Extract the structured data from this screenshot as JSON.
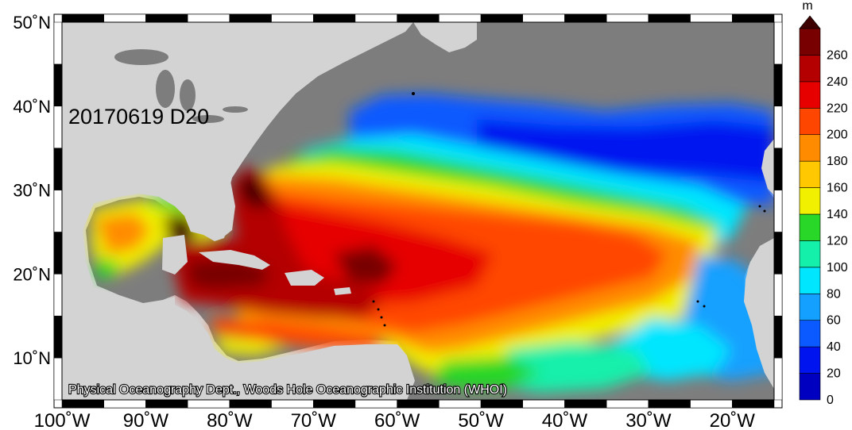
{
  "map": {
    "date_label": "20170619 D20",
    "credit": "Physical Oceanography Dept., Woods Hole Oceanographic Institution (WHOI)",
    "land_color": "#d3d3d3",
    "nodata_color": "#7d7d7d",
    "lat_ticks": [
      {
        "value": 50,
        "label": "50˚N"
      },
      {
        "value": 40,
        "label": "40˚N"
      },
      {
        "value": 30,
        "label": "30˚N"
      },
      {
        "value": 20,
        "label": "20˚N"
      },
      {
        "value": 10,
        "label": "10˚N"
      }
    ],
    "lon_ticks": [
      {
        "value": -100,
        "label": "100˚W"
      },
      {
        "value": -90,
        "label": "90˚W"
      },
      {
        "value": -80,
        "label": "80˚W"
      },
      {
        "value": -70,
        "label": "70˚W"
      },
      {
        "value": -60,
        "label": "60˚W"
      },
      {
        "value": -50,
        "label": "50˚W"
      },
      {
        "value": -40,
        "label": "40˚W"
      },
      {
        "value": -30,
        "label": "30˚W"
      },
      {
        "value": -20,
        "label": "20˚W"
      }
    ],
    "extent": {
      "lon": [
        -100,
        -15
      ],
      "lat": [
        5,
        50
      ]
    }
  },
  "colorbar": {
    "unit": "m",
    "ticks": [
      "0",
      "20",
      "40",
      "60",
      "80",
      "100",
      "120",
      "140",
      "160",
      "180",
      "200",
      "220",
      "240",
      "260"
    ],
    "colors": [
      "#0000c0",
      "#0014f0",
      "#0a5aff",
      "#14a0ff",
      "#00e6ff",
      "#14f0aa",
      "#28d728",
      "#f0f000",
      "#ffc800",
      "#ff8c00",
      "#ff4600",
      "#e60000",
      "#b40000",
      "#780000"
    ],
    "max_color": "#3c0000"
  }
}
